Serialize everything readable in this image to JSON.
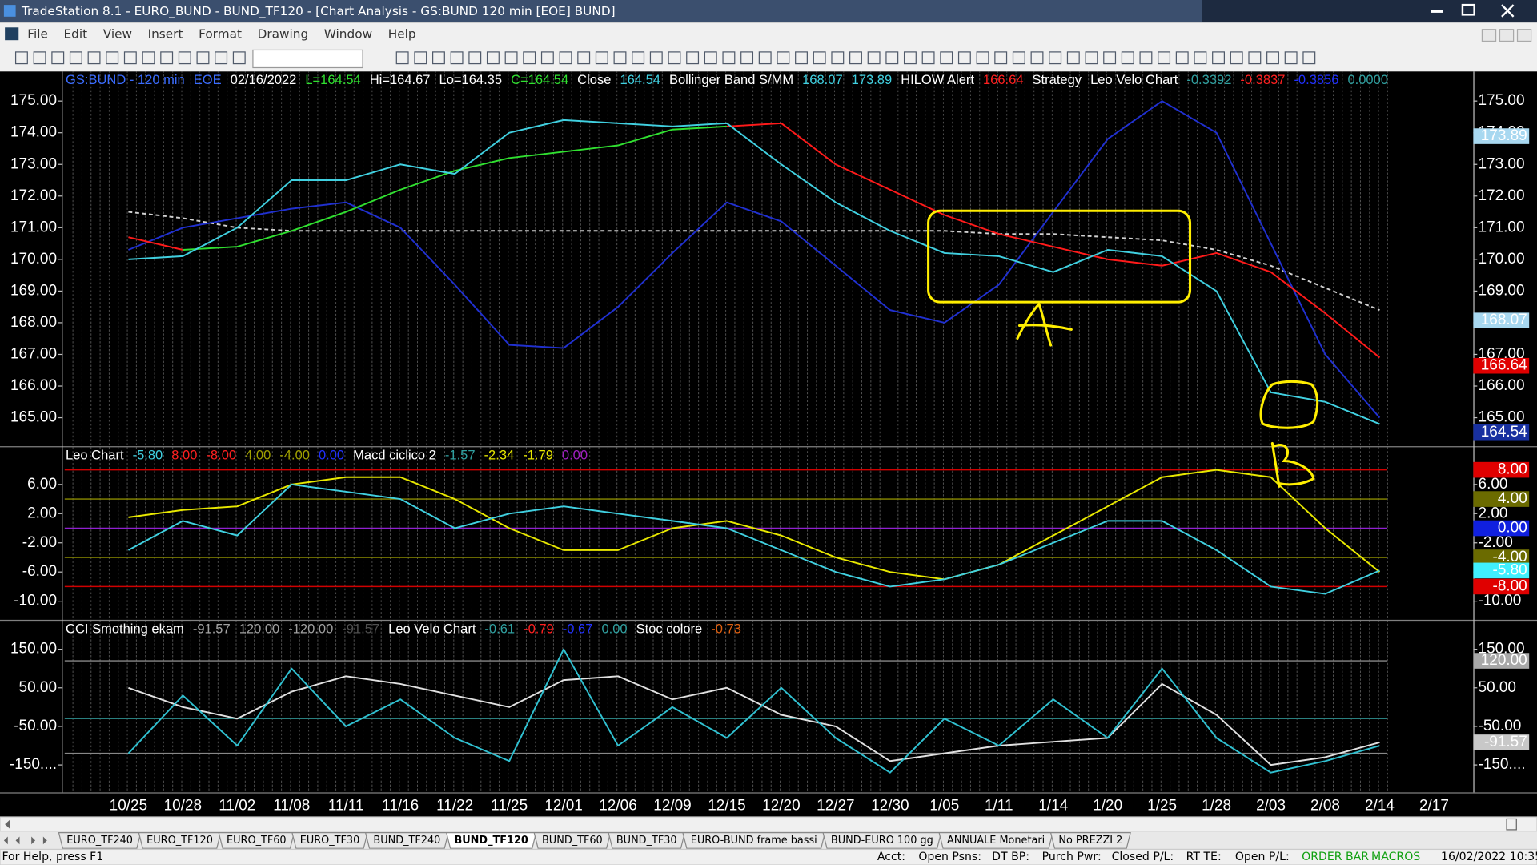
{
  "window": {
    "title": "TradeStation 8.1 - EURO_BUND - BUND_TF120 - [Chart Analysis - GS:BUND  120 min  [EOE] BUND]"
  },
  "menu": [
    "File",
    "Edit",
    "View",
    "Insert",
    "Format",
    "Drawing",
    "Window",
    "Help"
  ],
  "chart": {
    "x_labels": [
      "10/25",
      "10/28",
      "11/02",
      "11/08",
      "11/11",
      "11/16",
      "11/22",
      "11/25",
      "12/01",
      "12/06",
      "12/09",
      "12/15",
      "12/20",
      "12/27",
      "12/30",
      "1/05",
      "1/11",
      "1/14",
      "1/20",
      "1/25",
      "1/28",
      "2/03",
      "2/08",
      "2/14",
      "2/17"
    ],
    "panels": [
      {
        "header": [
          {
            "text": "GS:BUND - 120 min",
            "color": "#3a6cff"
          },
          {
            "text": "EOE",
            "color": "#3a6cff"
          },
          {
            "text": "02/16/2022",
            "color": "#ffffff"
          },
          {
            "text": "L=164.54",
            "color": "#30e030"
          },
          {
            "text": "Hi=164.67",
            "color": "#ffffff"
          },
          {
            "text": "Lo=164.35",
            "color": "#ffffff"
          },
          {
            "text": "C=164.54",
            "color": "#30e030"
          },
          {
            "text": "Close",
            "color": "#ffffff"
          },
          {
            "text": "164.54",
            "color": "#40d0e0"
          },
          {
            "text": "Bollinger Band S/MM",
            "color": "#ffffff"
          },
          {
            "text": "168.07",
            "color": "#40d0e0"
          },
          {
            "text": "173.89",
            "color": "#40d0e0"
          },
          {
            "text": "HILOW Alert",
            "color": "#ffffff"
          },
          {
            "text": "166.64",
            "color": "#ff2020"
          },
          {
            "text": "Strategy",
            "color": "#ffffff"
          },
          {
            "text": "Leo Velo Chart",
            "color": "#ffffff"
          },
          {
            "text": "-0.3392",
            "color": "#30a0a0"
          },
          {
            "text": "-0.3837",
            "color": "#ff2020"
          },
          {
            "text": "-0.3856",
            "color": "#2030ff"
          },
          {
            "text": "0.0000",
            "color": "#30a0a0"
          }
        ],
        "ylim": [
          164.1,
          175.93
        ],
        "yticks": [
          {
            "value": 175,
            "label": "175.00"
          },
          {
            "value": 174,
            "label": "174.00"
          },
          {
            "value": 173,
            "label": "173.00"
          },
          {
            "value": 172,
            "label": "172.00"
          },
          {
            "value": 171,
            "label": "171.00"
          },
          {
            "value": 170,
            "label": "170.00"
          },
          {
            "value": 169,
            "label": "169.00"
          },
          {
            "value": 168,
            "label": "168.00"
          },
          {
            "value": 167,
            "label": "167.00"
          },
          {
            "value": 166,
            "label": "166.00"
          },
          {
            "value": 165,
            "label": "165.00"
          }
        ],
        "levels": [],
        "series": [
          {
            "color": "#d0d0d0",
            "dash": true,
            "values": [
              171.5,
              171.3,
              171.0,
              170.9,
              170.9,
              170.9,
              170.9,
              170.9,
              170.9,
              170.9,
              170.9,
              170.9,
              170.9,
              170.9,
              170.9,
              170.9,
              170.8,
              170.8,
              170.7,
              170.6,
              170.3,
              169.8,
              169.1,
              168.4,
              null
            ]
          },
          {
            "color": "#2030d0",
            "dash": false,
            "values": [
              170.3,
              171.0,
              171.3,
              171.6,
              171.8,
              171.0,
              169.2,
              167.3,
              167.2,
              168.5,
              170.2,
              171.8,
              171.2,
              169.8,
              168.4,
              168.0,
              169.2,
              171.5,
              173.8,
              175.0,
              174.0,
              170.5,
              167.0,
              165.0,
              null
            ]
          },
          {
            "color": "#30e030",
            "dash": false,
            "values": [
              null,
              170.3,
              170.4,
              170.9,
              171.5,
              172.2,
              172.8,
              173.2,
              173.4,
              173.6,
              174.1,
              174.2,
              null,
              null,
              null,
              null,
              null,
              null,
              null,
              null,
              null,
              null,
              null,
              null,
              null
            ]
          },
          {
            "color": "#ff1a1a",
            "dash": false,
            "values": [
              170.7,
              170.3,
              null,
              null,
              null,
              null,
              null,
              null,
              null,
              null,
              null,
              174.2,
              174.3,
              173.0,
              172.2,
              171.4,
              170.8,
              170.4,
              170.0,
              169.8,
              170.2,
              169.6,
              168.3,
              166.9,
              null
            ]
          },
          {
            "color": "#40d0e0",
            "dash": false,
            "values": [
              170.0,
              170.1,
              171.0,
              172.5,
              172.5,
              173.0,
              172.7,
              174.0,
              174.4,
              174.3,
              174.2,
              174.3,
              173.0,
              171.8,
              170.9,
              170.2,
              170.1,
              169.6,
              170.3,
              170.1,
              169.0,
              165.8,
              165.5,
              164.8,
              null
            ]
          }
        ],
        "badges": [
          {
            "value": 173.89,
            "label": "173.89",
            "bg": "#a8d8f0",
            "fg": "#000000"
          },
          {
            "value": 168.07,
            "label": "168.07",
            "bg": "#a8d8f0",
            "fg": "#000000"
          },
          {
            "value": 166.64,
            "label": "166.64",
            "bg": "#e00000",
            "fg": "#ffffff"
          },
          {
            "value": 164.54,
            "label": "164.54",
            "bg": "#1830a0",
            "fg": "#ffffff"
          }
        ]
      },
      {
        "header": [
          {
            "text": "Leo Chart",
            "color": "#ffffff"
          },
          {
            "text": "-5.80",
            "color": "#40d0e0"
          },
          {
            "text": "8.00",
            "color": "#ff2020"
          },
          {
            "text": "-8.00",
            "color": "#ff2020"
          },
          {
            "text": "4.00",
            "color": "#a0a000"
          },
          {
            "text": "-4.00",
            "color": "#a0a000"
          },
          {
            "text": "0.00",
            "color": "#2030ff"
          },
          {
            "text": "Macd ciclico 2",
            "color": "#ffffff"
          },
          {
            "text": "-1.57",
            "color": "#30a0a0"
          },
          {
            "text": "-2.34",
            "color": "#e8e800"
          },
          {
            "text": "-1.79",
            "color": "#e8e800"
          },
          {
            "text": "0.00",
            "color": "#a020c0"
          }
        ],
        "ylim": [
          -12.55,
          11.1
        ],
        "yticks": [
          {
            "value": 6,
            "label": "6.00"
          },
          {
            "value": 2,
            "label": "2.00"
          },
          {
            "value": -2,
            "label": "-2.00"
          },
          {
            "value": -6,
            "label": "-6.00"
          },
          {
            "value": -10,
            "label": "-10.00"
          }
        ],
        "levels": [
          {
            "value": 8,
            "color": "#d00000"
          },
          {
            "value": 4,
            "color": "#8a8a00"
          },
          {
            "value": 0,
            "color": "#9020d0"
          },
          {
            "value": -4,
            "color": "#8a8a00"
          },
          {
            "value": -8,
            "color": "#d00000"
          }
        ],
        "series": [
          {
            "color": "#e8e800",
            "dash": false,
            "values": [
              1.5,
              2.5,
              3,
              6,
              7,
              7,
              4,
              0,
              -3,
              -3,
              0,
              1,
              -1,
              -4,
              -6,
              -7,
              -5,
              -1,
              3,
              7,
              8,
              7,
              0,
              -6,
              null
            ]
          },
          {
            "color": "#40d0e0",
            "dash": false,
            "values": [
              -3,
              1,
              -1,
              6,
              5,
              4,
              0,
              2,
              3,
              2,
              1,
              0,
              -3,
              -6,
              -8,
              -7,
              -5,
              -2,
              1,
              1,
              -3,
              -8,
              -9,
              -5.8,
              null
            ]
          }
        ],
        "badges": [
          {
            "value": 8,
            "label": "8.00",
            "bg": "#e00000",
            "fg": "#ffffff"
          },
          {
            "value": 4,
            "label": "4.00",
            "bg": "#6b6b00",
            "fg": "#e0e0e0"
          },
          {
            "value": 0,
            "label": "0.00",
            "bg": "#1020e0",
            "fg": "#e0e0e0"
          },
          {
            "value": -4,
            "label": "-4.00",
            "bg": "#6b6b00",
            "fg": "#e0e0e0"
          },
          {
            "value": -5.8,
            "label": "-5.80",
            "bg": "#40f0ff",
            "fg": "#000000"
          },
          {
            "value": -8,
            "label": "-8.00",
            "bg": "#e00000",
            "fg": "#ffffff"
          }
        ]
      },
      {
        "header": [
          {
            "text": "CCI Smothing ekam",
            "color": "#ffffff"
          },
          {
            "text": "-91.57",
            "color": "#a0a0a0"
          },
          {
            "text": "120.00",
            "color": "#a0a0a0"
          },
          {
            "text": "-120.00",
            "color": "#a0a0a0"
          },
          {
            "text": "-91.57",
            "color": "#505050"
          },
          {
            "text": "Leo Velo Chart",
            "color": "#ffffff"
          },
          {
            "text": "-0.61",
            "color": "#30a0a0"
          },
          {
            "text": "-0.79",
            "color": "#ff2020"
          },
          {
            "text": "-0.67",
            "color": "#2030ff"
          },
          {
            "text": "0.00",
            "color": "#30a0a0"
          },
          {
            "text": "Stoc colore",
            "color": "#ffffff"
          },
          {
            "text": "-0.73",
            "color": "#e06010"
          }
        ],
        "ylim": [
          -221.2,
          223.7
        ],
        "yticks": [
          {
            "value": 150,
            "label": "150.00"
          },
          {
            "value": 50,
            "label": "50.00"
          },
          {
            "value": -50,
            "label": "-50.00"
          },
          {
            "value": -150,
            "label": "-150...."
          }
        ],
        "levels": [
          {
            "value": 120,
            "color": "#888888"
          },
          {
            "value": -30,
            "color": "#2a8080"
          },
          {
            "value": -120,
            "color": "#888888"
          }
        ],
        "series": [
          {
            "color": "#e0e0e0",
            "dash": false,
            "values": [
              50,
              0,
              -30,
              40,
              80,
              60,
              30,
              0,
              70,
              80,
              20,
              50,
              -20,
              -50,
              -140,
              -120,
              -100,
              -90,
              -80,
              60,
              -20,
              -150,
              -130,
              -91.57,
              null
            ]
          },
          {
            "color": "#30c0d0",
            "dash": false,
            "values": [
              -120,
              30,
              -100,
              100,
              -50,
              20,
              -80,
              -140,
              150,
              -100,
              0,
              -80,
              50,
              -80,
              -170,
              -30,
              -100,
              20,
              -80,
              100,
              -80,
              -170,
              -140,
              -100,
              null
            ]
          }
        ],
        "badges": [
          {
            "value": 120,
            "label": "120.00",
            "bg": "#a8a8a8",
            "fg": "#000000"
          },
          {
            "value": -91.57,
            "label": "-91.57",
            "bg": "#c8c8c8",
            "fg": "#000000"
          }
        ]
      }
    ]
  },
  "tabs": [
    "EURO_TF240",
    "EURO_TF120",
    "EURO_TF60",
    "EURO_TF30",
    "BUND_TF240",
    "BUND_TF120",
    "BUND_TF60",
    "BUND_TF30",
    "EURO-BUND frame bassi",
    "BUND-EURO 100 gg",
    "ANNUALE Monetari",
    "No PREZZI 2"
  ],
  "active_tab": 5,
  "status": [
    "For Help, press F1",
    "Acct:",
    "Open Psns:",
    "DT BP:",
    "Purch Pwr:",
    "Closed P/L:",
    "RT TE:",
    "Open P/L:",
    "ORDER BAR",
    "MACROS",
    "16/02/2022 10:35"
  ]
}
